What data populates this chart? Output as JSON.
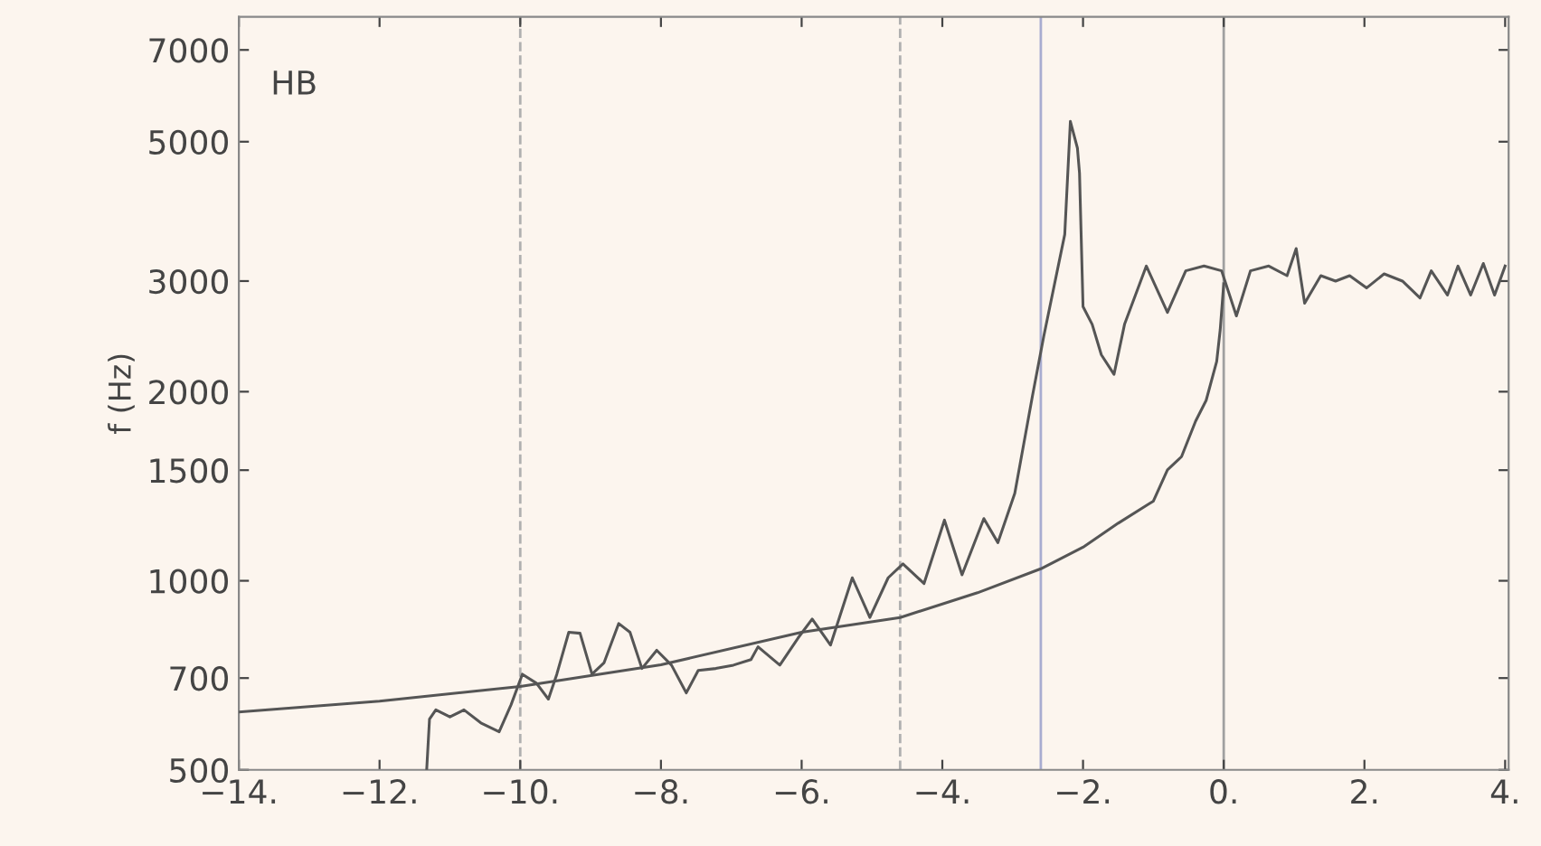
{
  "chart_data": {
    "type": "line",
    "ylabel": "f (Hz)",
    "annotations": [
      "HB"
    ],
    "log": "y",
    "xlim": [
      -14,
      4.05
    ],
    "ylim": [
      500,
      7900
    ],
    "xticks": [
      {
        "value": -14,
        "label": "−14."
      },
      {
        "value": -12,
        "label": "−12."
      },
      {
        "value": -10,
        "label": "−10."
      },
      {
        "value": -8,
        "label": "−8."
      },
      {
        "value": -6,
        "label": "−6."
      },
      {
        "value": -4,
        "label": "−4."
      },
      {
        "value": -2,
        "label": "−2."
      },
      {
        "value": 0,
        "label": "0."
      },
      {
        "value": 2,
        "label": "2."
      },
      {
        "value": 4,
        "label": "4."
      }
    ],
    "yticks": [
      500,
      700,
      1000,
      1500,
      2000,
      3000,
      5000,
      7000
    ],
    "marker": "none",
    "ref_lines": [
      {
        "axis": "x",
        "value": -10,
        "color": "#b0b0b0",
        "line_style": "dashed"
      },
      {
        "axis": "x",
        "value": -4.6,
        "color": "#b0b0b0",
        "line_style": "dashed"
      },
      {
        "axis": "x",
        "value": -2.6,
        "color": "#a8acd0",
        "line_style": "solid"
      },
      {
        "axis": "x",
        "value": 0,
        "color": "#a0a0a0",
        "line_style": "solid"
      }
    ],
    "series": [
      {
        "color": "#555555",
        "line_style": "solid",
        "x": [
          -14,
          -12,
          -10,
          -8,
          -6,
          -4.6,
          -3.5,
          -2.6,
          -2,
          -1.5,
          -1,
          -0.8,
          -0.6,
          -0.4,
          -0.25,
          -0.1,
          -0.05,
          0
        ],
        "values": [
          618,
          643,
          679,
          735,
          828,
          874,
          957,
          1045,
          1131,
          1235,
          1339,
          1502,
          1576,
          1795,
          1937,
          2235,
          2510,
          2970
        ]
      },
      {
        "color": "#555555",
        "line_style": "solid",
        "x": [
          -11.33,
          -11.29,
          -11.2,
          -11.0,
          -10.8,
          -10.56,
          -10.3,
          -10.13,
          -9.97,
          -9.77,
          -9.6,
          -9.48,
          -9.31,
          -9.15,
          -8.98,
          -8.81,
          -8.6,
          -8.44,
          -8.27,
          -8.06,
          -7.85,
          -7.64,
          -7.47,
          -7.22,
          -6.97,
          -6.72,
          -6.62,
          -6.31,
          -6.05,
          -5.85,
          -5.59,
          -5.28,
          -5.03,
          -4.77,
          -4.56,
          -4.26,
          -3.97,
          -3.72,
          -3.41,
          -3.21,
          -2.97,
          -2.72,
          -2.56,
          -2.26,
          -2.18,
          -2.08,
          -2.05,
          -2.0,
          -1.87,
          -1.74,
          -1.56,
          -1.41,
          -1.1,
          -0.8,
          -0.54,
          -0.28,
          -0.03,
          0.18,
          0.38,
          0.64,
          0.9,
          1.03,
          1.15,
          1.38,
          1.59,
          1.79,
          2.03,
          2.28,
          2.54,
          2.79,
          2.95,
          3.18,
          3.33,
          3.51,
          3.69,
          3.85,
          4.0
        ],
        "values": [
          500,
          602,
          623,
          607,
          623,
          594,
          575,
          635,
          710,
          687,
          648,
          710,
          828,
          825,
          710,
          740,
          855,
          828,
          725,
          775,
          734,
          663,
          720,
          725,
          734,
          749,
          785,
          734,
          811,
          869,
          790,
          1011,
          874,
          1011,
          1064,
          990,
          1249,
          1022,
          1256,
          1150,
          1378,
          1966,
          2444,
          3559,
          5385,
          4886,
          4455,
          2731,
          2560,
          2290,
          2131,
          2560,
          3170,
          2675,
          3115,
          3170,
          3115,
          2640,
          3115,
          3170,
          3060,
          3380,
          2765,
          3060,
          3000,
          3060,
          2925,
          3080,
          3000,
          2820,
          3115,
          2850,
          3170,
          2850,
          3200,
          2850,
          3170
        ]
      }
    ]
  }
}
